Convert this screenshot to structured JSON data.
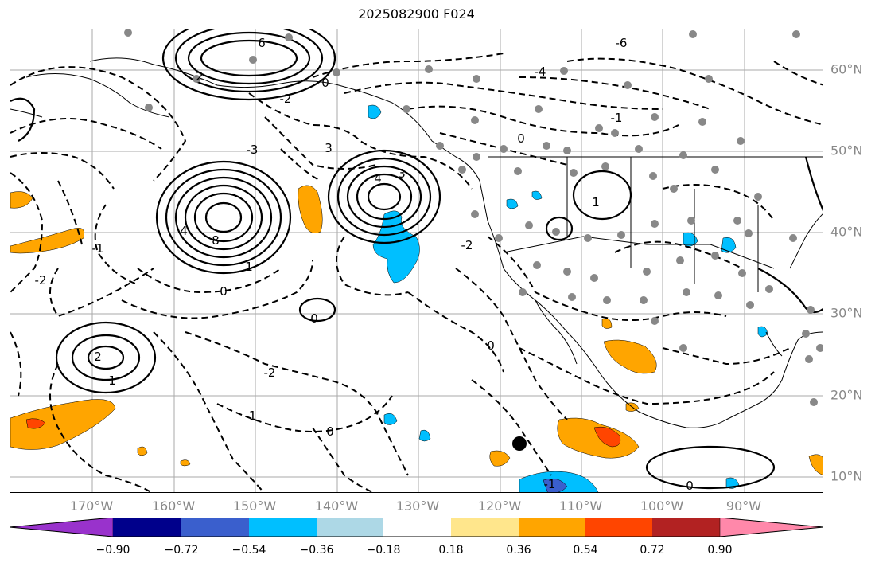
{
  "title": "2025082900 F024",
  "longitude_labels": [
    "170°W",
    "160°W",
    "150°W",
    "140°W",
    "130°W",
    "120°W",
    "110°W",
    "100°W",
    "90°W"
  ],
  "latitude_labels": [
    "60°N",
    "50°N",
    "40°N",
    "30°N",
    "20°N",
    "10°N"
  ],
  "contour_labels": [
    "6",
    "0",
    "2",
    "3",
    "1",
    "4",
    "8",
    "-2",
    "-3",
    "-1",
    "-6",
    "-4",
    "-2",
    "-1",
    "0",
    "0",
    "2",
    "1",
    "4",
    "3",
    "0",
    "-2",
    "-1",
    "0",
    "-2",
    "0",
    "-1",
    "1",
    "0"
  ],
  "colorbar": {
    "ticks": [
      "−0.90",
      "−0.72",
      "−0.54",
      "−0.36",
      "−0.18",
      "0.18",
      "0.36",
      "0.54",
      "0.72",
      "0.90"
    ],
    "colors": [
      "#9932cc",
      "#00008b",
      "#3a5fcd",
      "#00bfff",
      "#add8e6",
      "#ffffff",
      "#ffe68c",
      "#ffa500",
      "#ff4500",
      "#b22222",
      "#ff88aa"
    ]
  },
  "marker": "black-dot"
}
